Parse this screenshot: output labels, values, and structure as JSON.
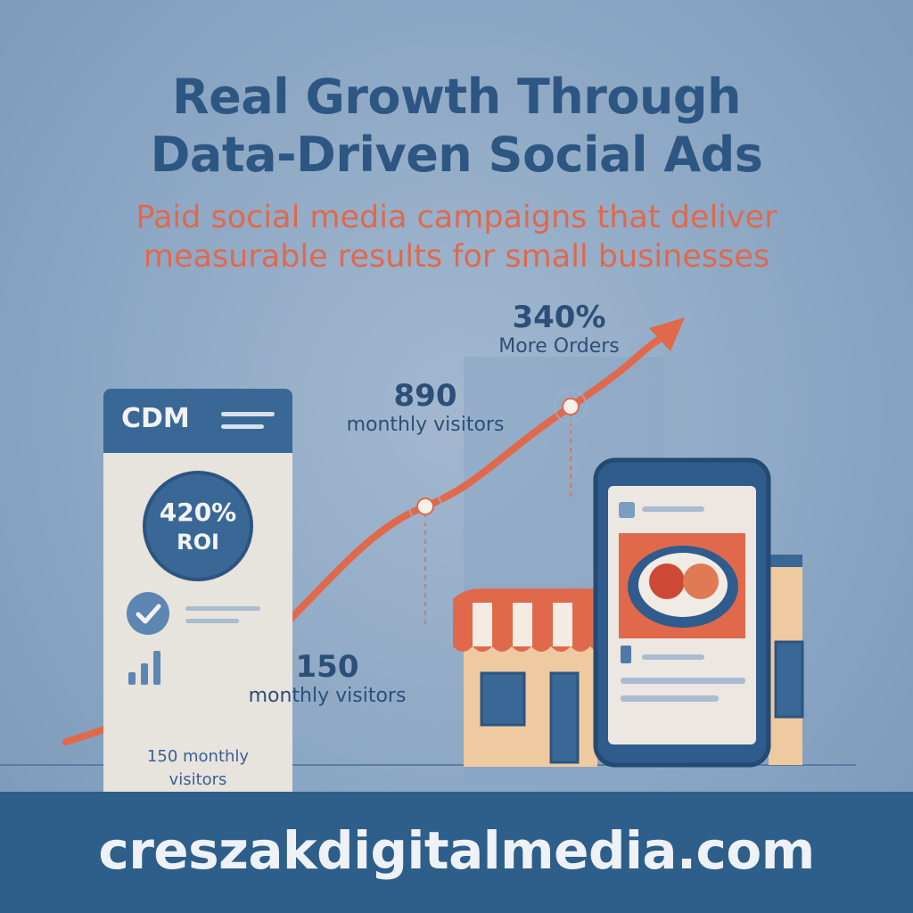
{
  "headline": {
    "line1": "Real Growth Through",
    "line2": "Data-Driven Social Ads"
  },
  "subheadline": {
    "line1": "Paid social media campaigns that deliver",
    "line2": "measurable results for small businesses"
  },
  "brand_card": {
    "brand": "CDM",
    "roi_value": "420%",
    "roi_label": "ROI",
    "note_line1": "150 monthly",
    "note_line2": "visitors"
  },
  "milestones": [
    {
      "value": "150",
      "label": "monthly visitors"
    },
    {
      "value": "890",
      "label": "monthly visitors"
    },
    {
      "value": "340%",
      "label": "More Orders"
    }
  ],
  "footer": {
    "website": "creszakdigitalmedia.com"
  },
  "colors": {
    "navy": "#2e5e8a",
    "accent_orange": "#e0694c",
    "title_blue": "#2d5683",
    "background": "#8ca7c4"
  },
  "icons": [
    "check-icon",
    "bar-chart-icon",
    "thumbs-up-icon",
    "trend-arrow-icon"
  ]
}
